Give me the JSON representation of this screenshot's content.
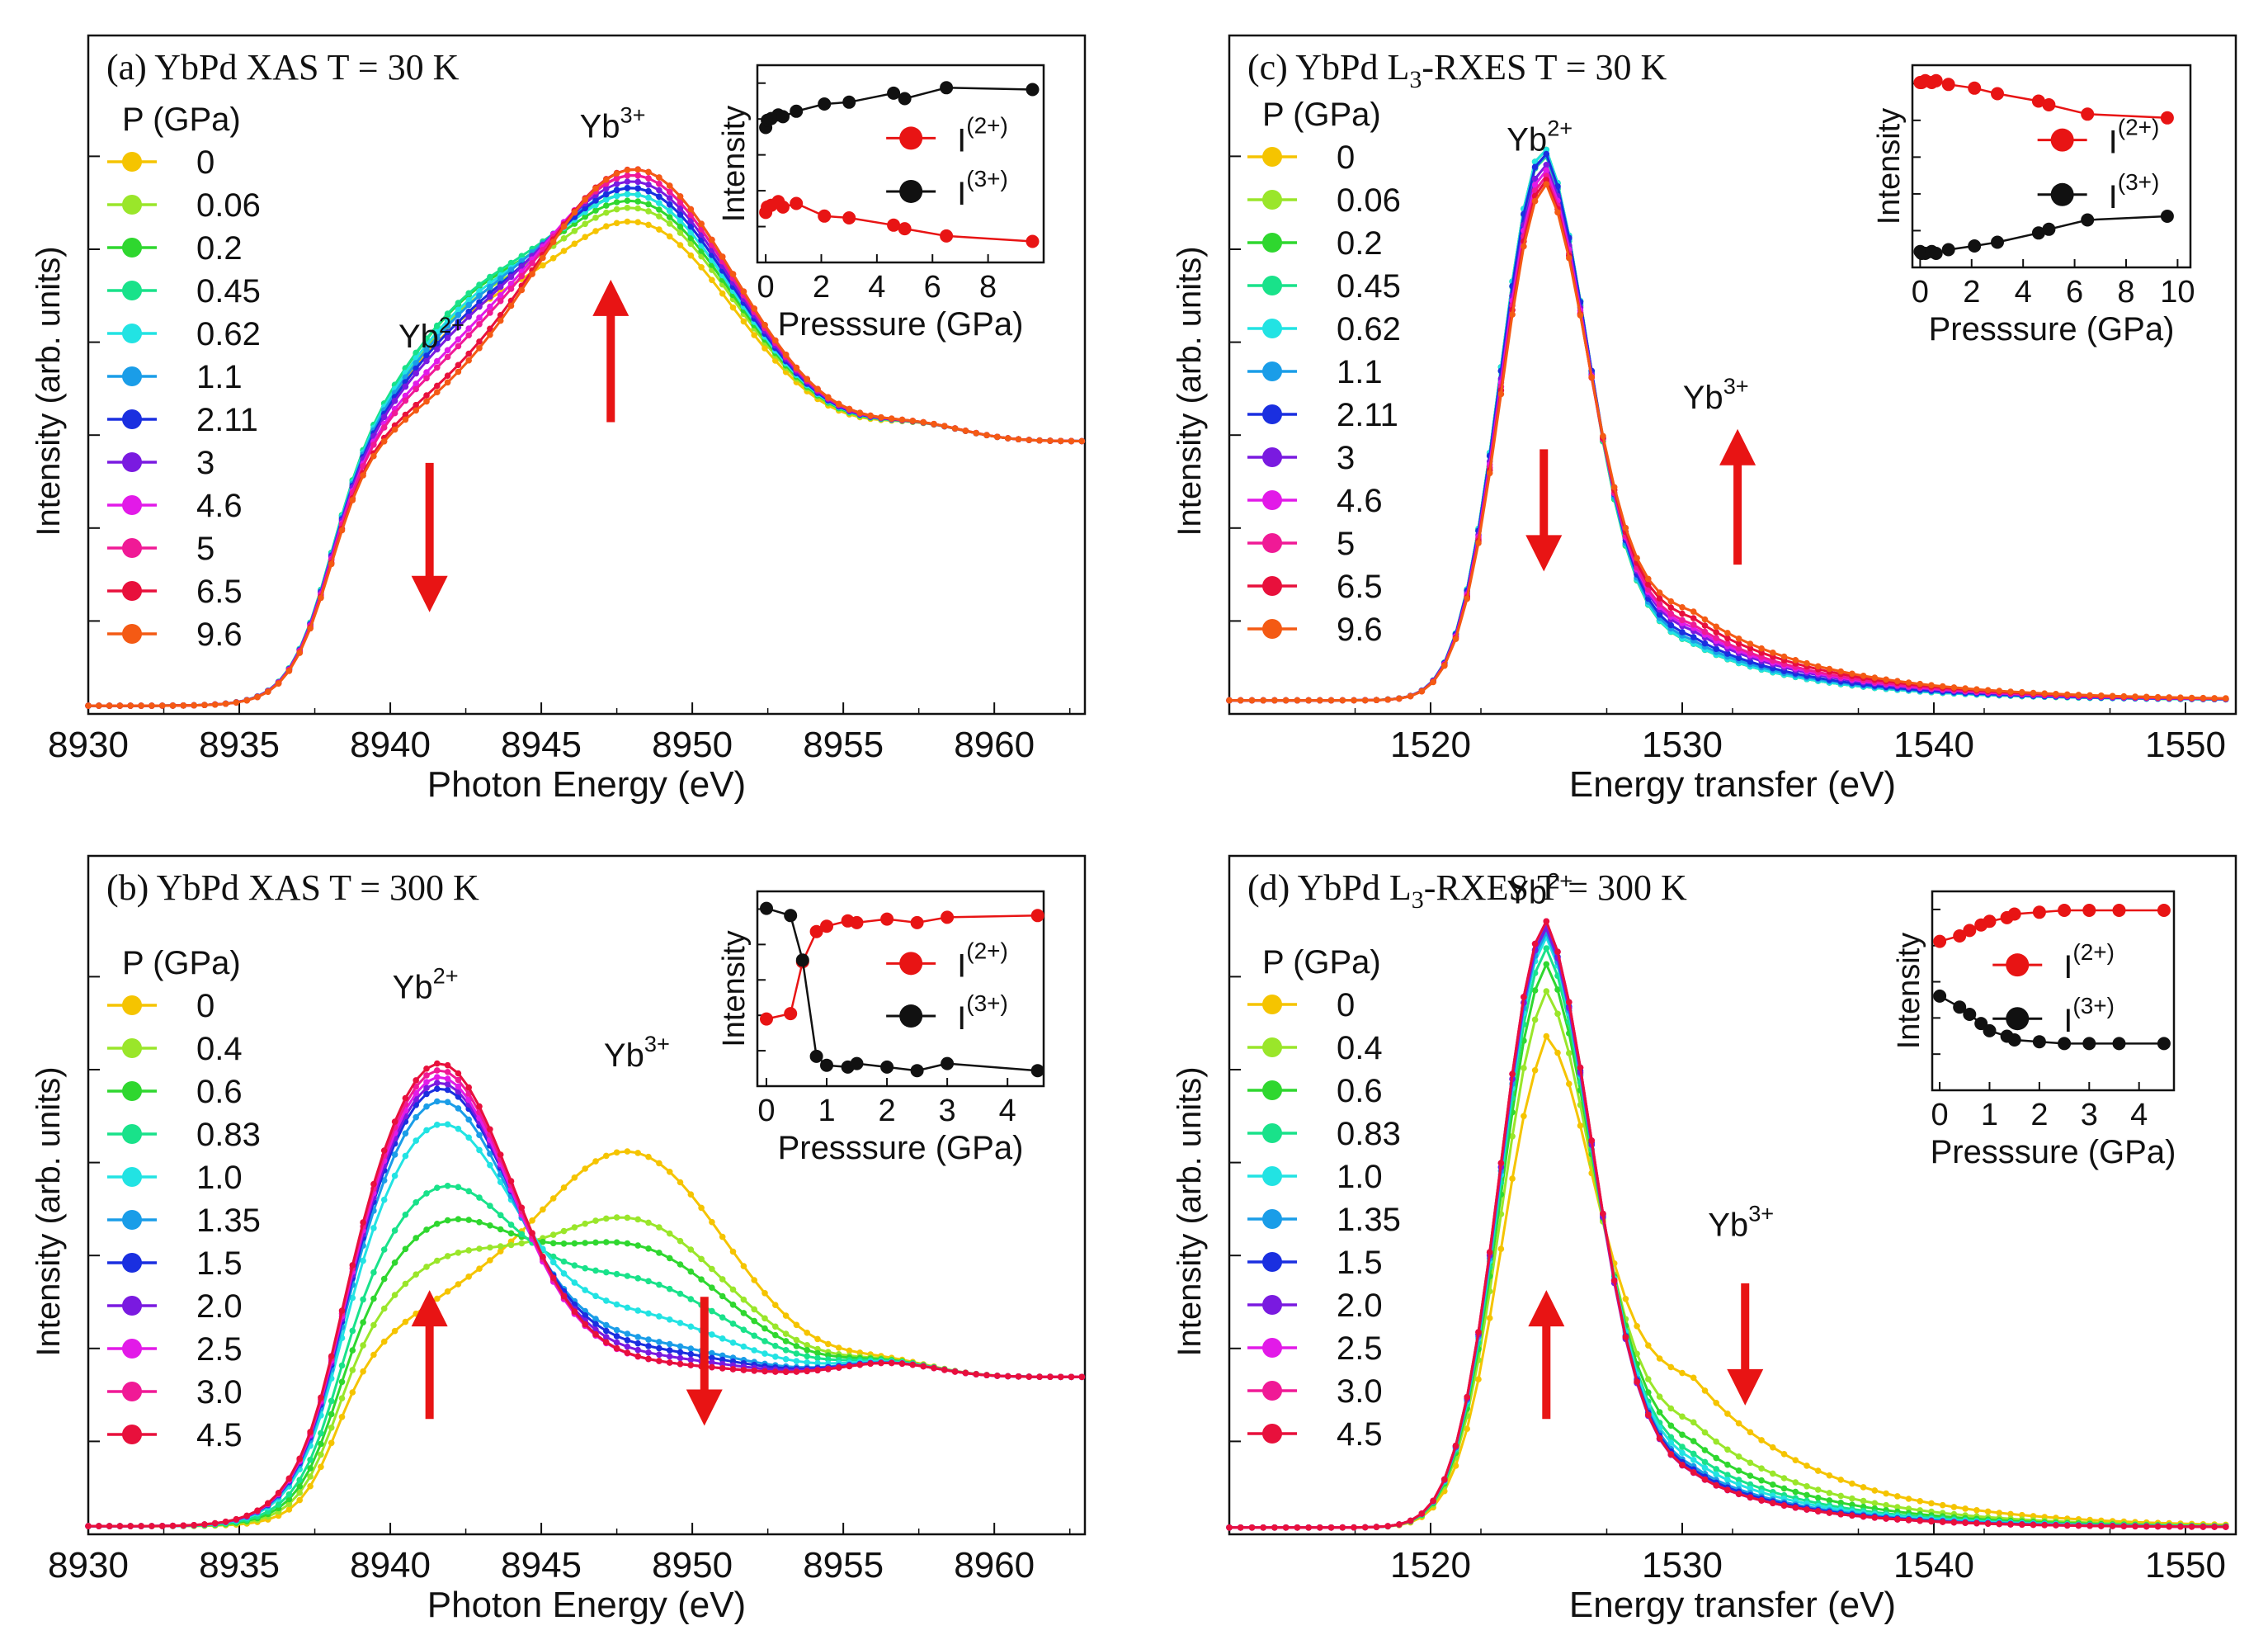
{
  "colors": {
    "p0": "#f5c400",
    "p1": "#9ae62a",
    "p2": "#2fd72f",
    "p3": "#19e28a",
    "p4": "#22e3e3",
    "p5": "#1a9de8",
    "p6": "#1a2fe0",
    "p7": "#7a1ae0",
    "p8": "#e21ae8",
    "p9": "#f01a96",
    "p10": "#e8103c",
    "p11": "#f45a14",
    "arrow": "#e81414",
    "i2": "#e81414",
    "i3": "#111111"
  },
  "chart_data": [
    {
      "id": "a",
      "type": "line",
      "title": "(a)  YbPd XAS  T = 30 K",
      "xlabel": "Photon Energy (eV)",
      "ylabel": "Intensity (arb. units)",
      "xlim": [
        8930,
        8963
      ],
      "ylim": [
        0,
        1.0
      ],
      "xticks": [
        "8930",
        "8935",
        "8940",
        "8945",
        "8950",
        "8955",
        "8960"
      ],
      "xtick_values": [
        8930,
        8935,
        8940,
        8945,
        8950,
        8955,
        8960
      ],
      "legend_title": "P (GPa)",
      "legend": [
        "0",
        "0.06",
        "0.2",
        "0.45",
        "0.62",
        "1.1",
        "2.11",
        "3",
        "4.6",
        "5",
        "6.5",
        "9.6"
      ],
      "peak_labels": [
        {
          "base": "Yb",
          "sup": "2+",
          "x": 8941.5,
          "y": 0.54
        },
        {
          "base": "Yb",
          "sup": "3+",
          "x": 8947.5,
          "y": 0.85
        }
      ],
      "arrows": [
        {
          "x": 8941.3,
          "from": 0.37,
          "to": 0.15
        },
        {
          "x": 8947.3,
          "from": 0.43,
          "to": 0.64
        }
      ],
      "series_model": {
        "x_start": 8930,
        "x_end": 8963,
        "step": 0.35,
        "edge_center": 8938.0,
        "edge_width": 0.7,
        "base_top": 0.39,
        "shoulder_center": 8942.3,
        "shoulder_width": 2.2,
        "main_center": 8948.1,
        "main_width": 3.3,
        "main_base": 0.39,
        "tail_center": 8957.5,
        "tail_amp": 0.022
      },
      "series_params": [
        {
          "shoulder": 0.11,
          "main": 0.32
        },
        {
          "shoulder": 0.12,
          "main": 0.34
        },
        {
          "shoulder": 0.13,
          "main": 0.35
        },
        {
          "shoulder": 0.13,
          "main": 0.36
        },
        {
          "shoulder": 0.12,
          "main": 0.36
        },
        {
          "shoulder": 0.11,
          "main": 0.37
        },
        {
          "shoulder": 0.1,
          "main": 0.37
        },
        {
          "shoulder": 0.09,
          "main": 0.38
        },
        {
          "shoulder": 0.07,
          "main": 0.39
        },
        {
          "shoulder": 0.06,
          "main": 0.39
        },
        {
          "shoulder": 0.03,
          "main": 0.4
        },
        {
          "shoulder": 0.02,
          "main": 0.4
        }
      ],
      "inset": {
        "xlabel": "Presssure (GPa)",
        "ylabel": "Intensity",
        "xlim": [
          -0.3,
          10
        ],
        "ylim": [
          0,
          1
        ],
        "xticks": [
          "0",
          "2",
          "4",
          "6",
          "8"
        ],
        "xtick_values": [
          0,
          2,
          4,
          6,
          8
        ],
        "legend": [
          "I(2+)",
          "I(3+)"
        ],
        "pressure": [
          0,
          0.06,
          0.2,
          0.45,
          0.62,
          1.1,
          2.11,
          3,
          4.6,
          5,
          6.5,
          9.6
        ],
        "I2": [
          0.24,
          0.27,
          0.28,
          0.3,
          0.27,
          0.29,
          0.22,
          0.21,
          0.17,
          0.15,
          0.11,
          0.08
        ],
        "I3": [
          0.71,
          0.75,
          0.76,
          0.78,
          0.77,
          0.8,
          0.84,
          0.85,
          0.9,
          0.87,
          0.93,
          0.92
        ]
      }
    },
    {
      "id": "b",
      "type": "line",
      "title": "(b)  YbPd XAS  T = 300 K",
      "xlabel": "Photon Energy (eV)",
      "ylabel": "Intensity (arb. units)",
      "xlim": [
        8930,
        8963
      ],
      "ylim": [
        0,
        1.0
      ],
      "xticks": [
        "8930",
        "8935",
        "8940",
        "8945",
        "8950",
        "8955",
        "8960"
      ],
      "xtick_values": [
        8930,
        8935,
        8940,
        8945,
        8950,
        8955,
        8960
      ],
      "legend_title": "P (GPa)",
      "legend": [
        "0",
        "0.4",
        "0.6",
        "0.83",
        "1.0",
        "1.35",
        "1.5",
        "2.0",
        "2.5",
        "3.0",
        "4.5"
      ],
      "peak_labels": [
        {
          "base": "Yb",
          "sup": "2+",
          "x": 8941.3,
          "y": 0.79
        },
        {
          "base": "Yb",
          "sup": "3+",
          "x": 8948.3,
          "y": 0.69
        }
      ],
      "arrows": [
        {
          "x": 8941.3,
          "from": 0.17,
          "to": 0.36
        },
        {
          "x": 8950.4,
          "from": 0.35,
          "to": 0.16
        }
      ],
      "series_model": {
        "x_start": 8930,
        "x_end": 8963,
        "step": 0.35,
        "edge_center": 8938.2,
        "edge_width": 0.6,
        "base_top": 0.22,
        "shoulder_center": 8941.6,
        "shoulder_width": 2.4,
        "main_center": 8947.9,
        "main_width": 3.2,
        "main_base": 0.22,
        "tail_center": 8956.5,
        "tail_amp": 0.02
      },
      "series_params": [
        {
          "shoulder": 0.07,
          "main": 0.33
        },
        {
          "shoulder": 0.14,
          "main": 0.23
        },
        {
          "shoulder": 0.2,
          "main": 0.19
        },
        {
          "shoulder": 0.26,
          "main": 0.14
        },
        {
          "shoulder": 0.36,
          "main": 0.09
        },
        {
          "shoulder": 0.4,
          "main": 0.05
        },
        {
          "shoulder": 0.42,
          "main": 0.04
        },
        {
          "shoulder": 0.43,
          "main": 0.03
        },
        {
          "shoulder": 0.44,
          "main": 0.02
        },
        {
          "shoulder": 0.45,
          "main": 0.02
        },
        {
          "shoulder": 0.46,
          "main": 0.02
        }
      ],
      "inset": {
        "xlabel": "Presssure (GPa)",
        "ylabel": "Intensity",
        "xlim": [
          -0.15,
          4.6
        ],
        "ylim": [
          0,
          1
        ],
        "xticks": [
          "0",
          "1",
          "2",
          "3",
          "4"
        ],
        "xtick_values": [
          0,
          1,
          2,
          3,
          4
        ],
        "legend": [
          "I(2+)",
          "I(3+)"
        ],
        "pressure": [
          0,
          0.4,
          0.6,
          0.83,
          1.0,
          1.35,
          1.5,
          2.0,
          2.5,
          3.0,
          4.5
        ],
        "I2": [
          0.34,
          0.37,
          0.66,
          0.83,
          0.86,
          0.89,
          0.88,
          0.9,
          0.88,
          0.91,
          0.92
        ],
        "I3": [
          0.96,
          0.92,
          0.67,
          0.13,
          0.08,
          0.07,
          0.09,
          0.07,
          0.05,
          0.09,
          0.05
        ]
      }
    },
    {
      "id": "c",
      "type": "line",
      "title": "(c)  YbPd L3-RXES    T = 30 K",
      "xlabel": "Energy transfer (eV)",
      "ylabel": "Intensity (arb. units)",
      "xlim": [
        1512,
        1552
      ],
      "ylim": [
        0,
        1.0
      ],
      "xticks": [
        "1520",
        "1530",
        "1540",
        "1550"
      ],
      "xtick_values": [
        1520,
        1530,
        1540,
        1550
      ],
      "legend_title": "P (GPa)",
      "legend": [
        "0",
        "0.06",
        "0.2",
        "0.45",
        "0.62",
        "1.1",
        "2.11",
        "3",
        "4.6",
        "5",
        "6.5",
        "9.6"
      ],
      "peak_labels": [
        {
          "base": "Yb",
          "sup": "2+",
          "x": 1524.5,
          "y": 0.83
        },
        {
          "base": "Yb",
          "sup": "3+",
          "x": 1531.5,
          "y": 0.45
        }
      ],
      "arrows": [
        {
          "x": 1524.5,
          "from": 0.39,
          "to": 0.21
        },
        {
          "x": 1532.2,
          "from": 0.22,
          "to": 0.42
        }
      ],
      "series_model": {
        "x_start": 1512,
        "x_end": 1552,
        "step": 0.45,
        "baseline": 0.02,
        "main_center": 1524.5,
        "main_width": 1.8,
        "sat_center": 1530.5,
        "sat_width": 4.2,
        "sat_decay": 6.0
      },
      "series_params": [
        {
          "main": 0.79,
          "sat": 0.05
        },
        {
          "main": 0.8,
          "sat": 0.05
        },
        {
          "main": 0.8,
          "sat": 0.05
        },
        {
          "main": 0.79,
          "sat": 0.05
        },
        {
          "main": 0.8,
          "sat": 0.05
        },
        {
          "main": 0.79,
          "sat": 0.055
        },
        {
          "main": 0.79,
          "sat": 0.06
        },
        {
          "main": 0.77,
          "sat": 0.07
        },
        {
          "main": 0.76,
          "sat": 0.075
        },
        {
          "main": 0.75,
          "sat": 0.08
        },
        {
          "main": 0.74,
          "sat": 0.09
        },
        {
          "main": 0.73,
          "sat": 0.1
        }
      ],
      "inset": {
        "xlabel": "Presssure (GPa)",
        "ylabel": "Intensity",
        "xlim": [
          -0.3,
          10.5
        ],
        "ylim": [
          0,
          1
        ],
        "xticks": [
          "0",
          "2",
          "4",
          "6",
          "8",
          "10"
        ],
        "xtick_values": [
          0,
          2,
          4,
          6,
          8,
          10
        ],
        "legend": [
          "I(2+)",
          "I(3+)"
        ],
        "pressure": [
          0,
          0.06,
          0.2,
          0.45,
          0.62,
          1.1,
          2.11,
          3,
          4.6,
          5,
          6.5,
          9.6
        ],
        "I2": [
          0.96,
          0.96,
          0.97,
          0.96,
          0.97,
          0.95,
          0.93,
          0.9,
          0.86,
          0.84,
          0.79,
          0.77
        ],
        "I3": [
          0.05,
          0.04,
          0.04,
          0.05,
          0.04,
          0.06,
          0.08,
          0.1,
          0.15,
          0.17,
          0.22,
          0.24
        ]
      }
    },
    {
      "id": "d",
      "type": "line",
      "title": "(d)  YbPd L3-RXES     T = 300 K",
      "xlabel": "Energy transfer (eV)",
      "ylabel": "Intensity (arb. units)",
      "xlim": [
        1512,
        1552
      ],
      "ylim": [
        0,
        1.0
      ],
      "xticks": [
        "1520",
        "1530",
        "1540",
        "1550"
      ],
      "xtick_values": [
        1520,
        1530,
        1540,
        1550
      ],
      "legend_title": "P (GPa)",
      "legend": [
        "0",
        "0.4",
        "0.6",
        "0.83",
        "1.0",
        "1.35",
        "1.5",
        "2.0",
        "2.5",
        "3.0",
        "4.5"
      ],
      "peak_labels": [
        {
          "base": "Yb",
          "sup": "2+",
          "x": 1524.5,
          "y": 0.93
        },
        {
          "base": "Yb",
          "sup": "3+",
          "x": 1532.5,
          "y": 0.44
        }
      ],
      "arrows": [
        {
          "x": 1524.6,
          "from": 0.17,
          "to": 0.36
        },
        {
          "x": 1532.5,
          "from": 0.37,
          "to": 0.19
        }
      ],
      "series_model": {
        "x_start": 1512,
        "x_end": 1552,
        "step": 0.45,
        "baseline": 0.01,
        "main_center": 1524.6,
        "main_width": 1.9,
        "sat_center": 1530.5,
        "sat_width": 4.0,
        "sat_decay": 5.5
      },
      "series_params": [
        {
          "main": 0.66,
          "sat": 0.19
        },
        {
          "main": 0.75,
          "sat": 0.12
        },
        {
          "main": 0.8,
          "sat": 0.09
        },
        {
          "main": 0.83,
          "sat": 0.07
        },
        {
          "main": 0.85,
          "sat": 0.06
        },
        {
          "main": 0.86,
          "sat": 0.05
        },
        {
          "main": 0.87,
          "sat": 0.045
        },
        {
          "main": 0.87,
          "sat": 0.04
        },
        {
          "main": 0.88,
          "sat": 0.04
        },
        {
          "main": 0.88,
          "sat": 0.04
        },
        {
          "main": 0.88,
          "sat": 0.04
        }
      ],
      "inset": {
        "xlabel": "Presssure (GPa)",
        "ylabel": "Intensity",
        "xlim": [
          -0.15,
          4.7
        ],
        "ylim": [
          0,
          1
        ],
        "xticks": [
          "0",
          "1",
          "2",
          "3",
          "4"
        ],
        "xtick_values": [
          0,
          1,
          2,
          3,
          4
        ],
        "legend": [
          "I(2+)",
          "I(3+)"
        ],
        "pressure": [
          0,
          0.4,
          0.6,
          0.83,
          1.0,
          1.35,
          1.5,
          2.0,
          2.5,
          3.0,
          3.6,
          4.5
        ],
        "I2": [
          0.78,
          0.81,
          0.84,
          0.87,
          0.89,
          0.91,
          0.93,
          0.94,
          0.95,
          0.95,
          0.95,
          0.95
        ],
        "I3": [
          0.48,
          0.42,
          0.38,
          0.33,
          0.29,
          0.26,
          0.24,
          0.23,
          0.22,
          0.22,
          0.22,
          0.22
        ]
      }
    }
  ]
}
